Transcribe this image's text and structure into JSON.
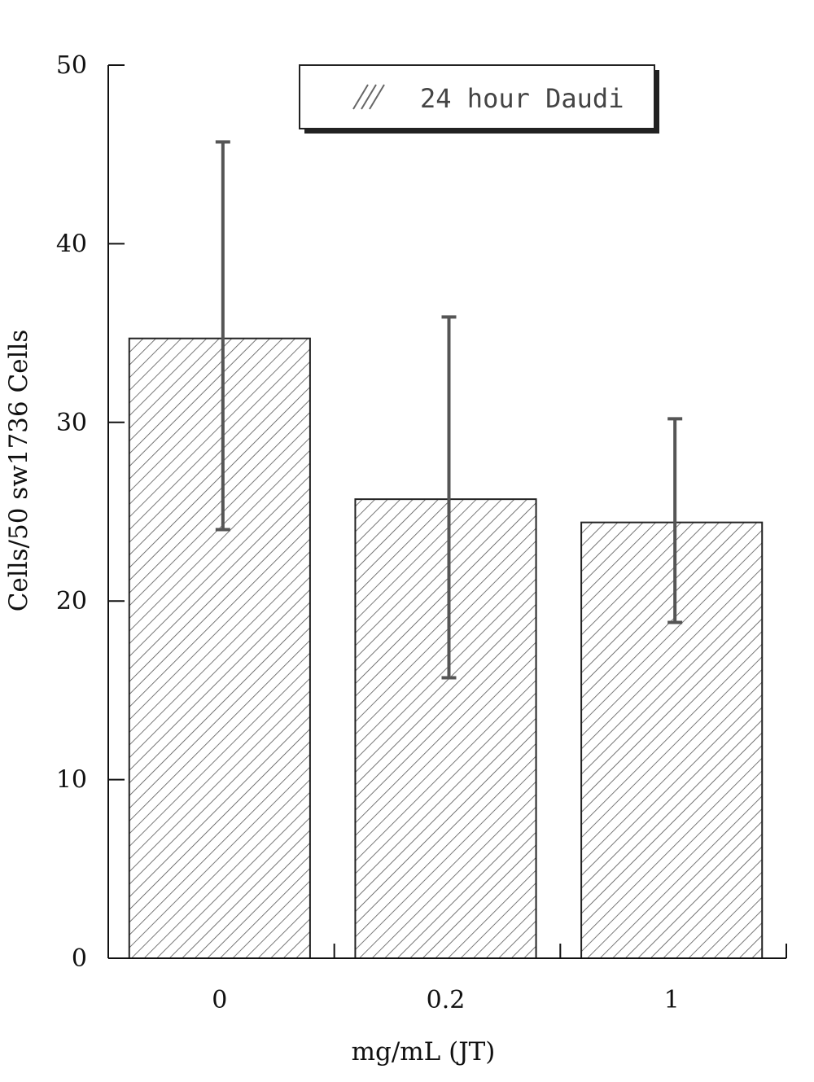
{
  "chart_data": {
    "type": "bar",
    "categories": [
      "0",
      "0.2",
      "1"
    ],
    "series": [
      {
        "name": "24 hour Daudi",
        "values": [
          34.7,
          25.7,
          24.4
        ],
        "error_low": [
          24.0,
          15.7,
          18.8
        ],
        "error_high": [
          45.7,
          35.9,
          30.2
        ]
      }
    ],
    "xlabel": "mg/mL (JT)",
    "ylabel": "Cells/50 sw1736 Cells",
    "ylim": [
      0,
      50
    ],
    "yticks": [
      "0",
      "10",
      "20",
      "30",
      "40",
      "50"
    ],
    "legend": {
      "label": "24 hour Daudi",
      "position": "top-right"
    },
    "grid": false,
    "bar_fill": "diagonal-hatch",
    "colors": {
      "axis": "#111111",
      "bar_stroke": "#222222",
      "hatch": "#555555",
      "error_bar": "#555555"
    }
  }
}
